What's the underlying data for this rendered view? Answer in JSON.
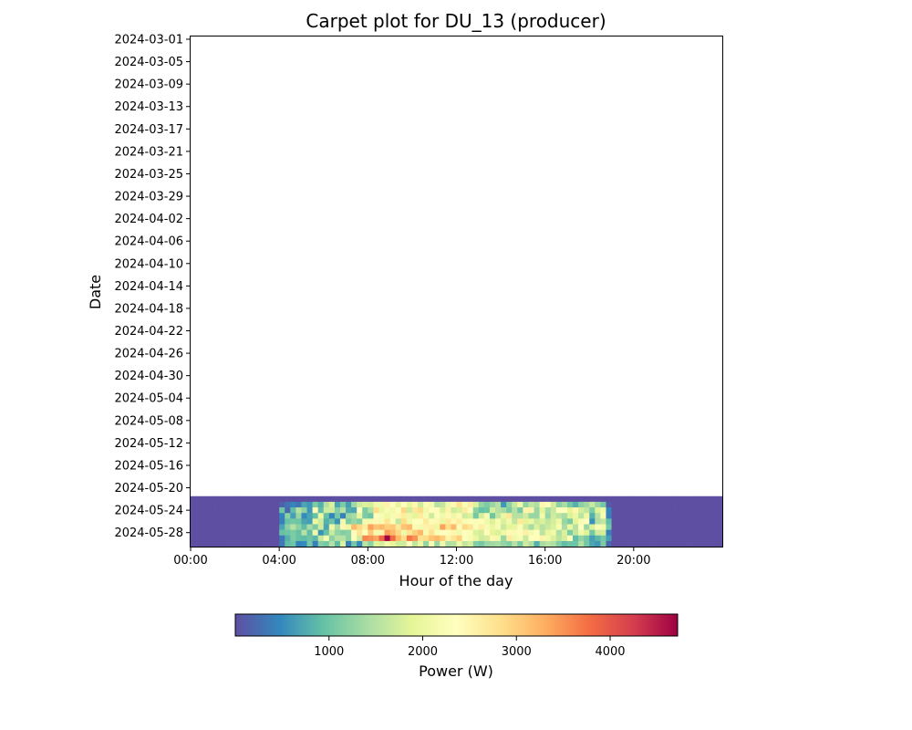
{
  "chart_data": {
    "type": "heatmap",
    "title": "Carpet plot for DU_13 (producer)",
    "xlabel": "Hour of the day",
    "ylabel": "Date",
    "x_range_hours": [
      0,
      24
    ],
    "x_resolution_minutes": 15,
    "x_ticks": [
      {
        "hour": 0,
        "label": "00:00"
      },
      {
        "hour": 4,
        "label": "04:00"
      },
      {
        "hour": 8,
        "label": "08:00"
      },
      {
        "hour": 12,
        "label": "12:00"
      },
      {
        "hour": 16,
        "label": "16:00"
      },
      {
        "hour": 20,
        "label": "20:00"
      }
    ],
    "y_range_dates": [
      "2024-03-01",
      "2024-05-30"
    ],
    "y_ticks": [
      "2024-03-01",
      "2024-03-05",
      "2024-03-09",
      "2024-03-13",
      "2024-03-17",
      "2024-03-21",
      "2024-03-25",
      "2024-03-29",
      "2024-04-02",
      "2024-04-06",
      "2024-04-10",
      "2024-04-14",
      "2024-04-18",
      "2024-04-22",
      "2024-04-26",
      "2024-04-30",
      "2024-05-04",
      "2024-05-08",
      "2024-05-12",
      "2024-05-16",
      "2024-05-20",
      "2024-05-24",
      "2024-05-28"
    ],
    "rows": [
      {
        "date": "2024-05-22",
        "values": [
          0,
          0,
          0,
          0,
          0,
          0,
          0,
          0,
          0,
          0,
          0,
          0,
          0,
          0,
          0,
          0,
          0,
          0,
          0,
          0,
          0,
          0,
          0,
          0,
          0,
          0,
          0,
          0,
          0,
          0,
          0,
          0,
          0,
          0,
          0,
          0,
          0,
          0,
          0,
          0,
          0,
          0,
          0,
          0,
          0,
          0,
          0,
          0,
          0,
          0,
          0,
          0,
          0,
          0,
          0,
          0,
          0,
          0,
          0,
          0,
          0,
          0,
          0,
          0,
          0,
          0,
          0,
          0,
          0,
          0,
          0,
          0,
          0,
          0,
          0,
          0,
          0,
          0,
          0,
          0,
          0,
          0,
          0,
          0,
          0,
          0,
          0,
          0,
          0,
          0,
          0,
          0,
          0,
          0,
          0,
          0
        ]
      },
      {
        "date": "2024-05-23",
        "values": [
          0,
          0,
          0,
          0,
          0,
          0,
          0,
          0,
          0,
          0,
          0,
          0,
          0,
          0,
          0,
          0,
          150,
          300,
          450,
          300,
          700,
          600,
          1100,
          800,
          1500,
          1800,
          700,
          1100,
          650,
          1350,
          1700,
          1800,
          1750,
          2100,
          2100,
          2550,
          2350,
          1950,
          2350,
          1950,
          2500,
          1700,
          2250,
          2150,
          1500,
          1600,
          2100,
          2450,
          2800,
          2250,
          2600,
          1800,
          1250,
          1100,
          1300,
          1500,
          600,
          1200,
          1650,
          2100,
          1250,
          1600,
          1450,
          2500,
          2300,
          1750,
          1200,
          1400,
          1050,
          800,
          1200,
          1350,
          1650,
          1300,
          1050,
          100,
          0,
          0,
          0,
          0,
          0,
          0,
          0,
          0,
          0,
          0,
          0,
          0,
          0,
          0,
          0,
          0,
          0,
          0,
          0,
          0
        ]
      },
      {
        "date": "2024-05-24",
        "values": [
          0,
          0,
          0,
          0,
          0,
          0,
          0,
          0,
          0,
          0,
          0,
          0,
          0,
          0,
          0,
          0,
          1000,
          200,
          900,
          1500,
          1200,
          600,
          2450,
          900,
          1700,
          1700,
          1150,
          1500,
          750,
          700,
          2350,
          1100,
          1450,
          2850,
          2000,
          2200,
          2100,
          2300,
          2900,
          1700,
          2700,
          2850,
          2100,
          2300,
          2400,
          1800,
          2550,
          1700,
          1800,
          2650,
          2400,
          1200,
          950,
          1000,
          1750,
          1500,
          1400,
          1100,
          1500,
          1050,
          2550,
          2550,
          1300,
          1900,
          1400,
          1650,
          2350,
          2300,
          1900,
          2500,
          1750,
          1600,
          1100,
          1850,
          2100,
          450,
          0,
          0,
          0,
          0,
          0,
          0,
          0,
          0,
          0,
          0,
          0,
          0,
          0,
          0,
          0,
          0,
          0,
          0,
          0,
          0
        ]
      },
      {
        "date": "2024-05-25",
        "values": [
          0,
          0,
          0,
          0,
          0,
          0,
          0,
          0,
          0,
          0,
          0,
          0,
          0,
          0,
          0,
          0,
          450,
          1200,
          650,
          1300,
          500,
          700,
          950,
          2050,
          950,
          450,
          1050,
          400,
          1300,
          1400,
          1950,
          1100,
          1000,
          2300,
          2200,
          2050,
          2200,
          2500,
          2650,
          2050,
          1900,
          2650,
          2200,
          1700,
          2300,
          2100,
          2450,
          2050,
          2450,
          1700,
          1800,
          1050,
          1750,
          2200,
          1000,
          1600,
          2000,
          2700,
          1500,
          1500,
          1700,
          1300,
          1300,
          2100,
          1300,
          1700,
          1550,
          1400,
          1800,
          2000,
          1550,
          2050,
          800,
          1500,
          2200,
          400,
          0,
          0,
          0,
          0,
          0,
          0,
          0,
          0,
          0,
          0,
          0,
          0,
          0,
          0,
          0,
          0,
          0,
          0,
          0,
          0
        ]
      },
      {
        "date": "2024-05-26",
        "values": [
          0,
          0,
          0,
          0,
          0,
          0,
          0,
          0,
          0,
          0,
          0,
          0,
          0,
          0,
          0,
          0,
          400,
          950,
          1050,
          1000,
          700,
          650,
          2000,
          1700,
          800,
          1000,
          550,
          2100,
          1100,
          1300,
          1150,
          2150,
          2150,
          2450,
          2200,
          2750,
          2250,
          1600,
          2850,
          2100,
          2300,
          2350,
          2700,
          2250,
          2500,
          2000,
          2700,
          2500,
          2650,
          2200,
          2300,
          2250,
          2300,
          2100,
          1800,
          2200,
          1800,
          2100,
          1600,
          2700,
          1900,
          2000,
          1650,
          1800,
          1600,
          1750,
          2050,
          1300,
          1100,
          1900,
          2200,
          2350,
          550,
          1450,
          1600,
          900,
          0,
          0,
          0,
          0,
          0,
          0,
          0,
          0,
          0,
          0,
          0,
          0,
          0,
          0,
          0,
          0,
          0,
          0,
          0,
          0
        ]
      },
      {
        "date": "2024-05-27",
        "values": [
          0,
          0,
          0,
          0,
          0,
          0,
          0,
          0,
          0,
          0,
          0,
          0,
          0,
          0,
          0,
          0,
          700,
          1200,
          1500,
          1200,
          900,
          1400,
          1100,
          1700,
          700,
          2050,
          1400,
          2500,
          2050,
          3200,
          2900,
          2650,
          3400,
          3100,
          3200,
          3000,
          3050,
          2700,
          3100,
          3200,
          2450,
          2150,
          2550,
          2600,
          2050,
          3400,
          2850,
          3200,
          2400,
          2900,
          2750,
          2250,
          2600,
          2200,
          2000,
          2200,
          1650,
          1900,
          1950,
          2250,
          1700,
          1400,
          1800,
          1500,
          1650,
          1800,
          2200,
          1400,
          2000,
          1500,
          2350,
          1300,
          1800,
          2250,
          2150,
          1050,
          0,
          0,
          0,
          0,
          0,
          0,
          0,
          0,
          0,
          0,
          0,
          0,
          0,
          0,
          0,
          0,
          0,
          0,
          0,
          0
        ]
      },
      {
        "date": "2024-05-28",
        "values": [
          0,
          0,
          0,
          0,
          0,
          0,
          0,
          0,
          0,
          0,
          0,
          0,
          0,
          0,
          0,
          0,
          950,
          1000,
          1100,
          950,
          1500,
          900,
          2050,
          550,
          950,
          1650,
          1250,
          1150,
          1200,
          2400,
          2750,
          2350,
          3050,
          2150,
          2500,
          3400,
          3200,
          2900,
          2100,
          2750,
          3000,
          3200,
          2200,
          2800,
          2250,
          2350,
          2400,
          2500,
          2100,
          2350,
          2250,
          1800,
          1750,
          2400,
          1900,
          1800,
          2050,
          2450,
          2200,
          2400,
          2600,
          2150,
          2350,
          1550,
          1950,
          2100,
          1450,
          1800,
          1100,
          1600,
          2100,
          1850,
          1050,
          1700,
          1750,
          400,
          0,
          0,
          0,
          0,
          0,
          0,
          0,
          0,
          0,
          0,
          0,
          0,
          0,
          0,
          0,
          0,
          0,
          0,
          0,
          0
        ]
      },
      {
        "date": "2024-05-29",
        "values": [
          0,
          0,
          0,
          0,
          0,
          0,
          0,
          0,
          0,
          0,
          0,
          0,
          0,
          0,
          0,
          0,
          350,
          800,
          1100,
          950,
          900,
          1000,
          850,
          1650,
          2150,
          1200,
          1500,
          1500,
          1200,
          2300,
          1700,
          3600,
          3500,
          3350,
          3850,
          4700,
          3800,
          3200,
          2850,
          3700,
          3500,
          2800,
          2850,
          3100,
          3200,
          3000,
          2550,
          2750,
          3000,
          2350,
          2200,
          2000,
          1700,
          1750,
          2500,
          2100,
          1300,
          2650,
          2100,
          2200,
          1650,
          2350,
          2300,
          2550,
          2100,
          1800,
          1550,
          1750,
          2300,
          900,
          1250,
          1050,
          650,
          850,
          1050,
          650,
          0,
          0,
          0,
          0,
          0,
          0,
          0,
          0,
          0,
          0,
          0,
          0,
          0,
          0,
          0,
          0,
          0,
          0,
          0,
          0
        ]
      },
      {
        "date": "2024-05-30",
        "values": [
          0,
          0,
          0,
          0,
          0,
          0,
          0,
          0,
          0,
          0,
          0,
          0,
          0,
          0,
          0,
          0,
          350,
          900,
          1000,
          450,
          500,
          1050,
          400,
          1150,
          1050,
          1500,
          900,
          1800,
          400,
          1050,
          500,
          1550,
          1200,
          1850,
          1750,
          2150,
          1900,
          1700,
          1700,
          2350,
          1600,
          2000,
          1250,
          2200,
          1300,
          2100,
          1450,
          1500,
          2050,
          1600,
          1750,
          1150,
          1050,
          1300,
          1350,
          1400,
          1250,
          1150,
          1500,
          1100,
          1700,
          1450,
          800,
          1400,
          1550,
          1450,
          1150,
          900,
          1000,
          1000,
          1450,
          1050,
          700,
          600,
          1100,
          200,
          0,
          0,
          0,
          0,
          0,
          0,
          0,
          0,
          0,
          0,
          0,
          0,
          0,
          0,
          0,
          0,
          0,
          0,
          0,
          0
        ]
      }
    ],
    "colormap": "Spectral_r",
    "colormap_stops": [
      "#5e4fa2",
      "#3288bd",
      "#66c2a5",
      "#abdda4",
      "#e6f598",
      "#ffffbf",
      "#fee08b",
      "#fdae61",
      "#f46d43",
      "#d53e4f",
      "#9e0142"
    ],
    "colorbar": {
      "label": "Power (W)",
      "range": [
        0,
        4720
      ],
      "ticks": [
        {
          "value": 1000,
          "label": "1000"
        },
        {
          "value": 2000,
          "label": "2000"
        },
        {
          "value": 3000,
          "label": "3000"
        },
        {
          "value": 4000,
          "label": "4000"
        }
      ],
      "orientation": "horizontal",
      "placement": "bottom"
    },
    "grid": false,
    "legend": "none"
  }
}
